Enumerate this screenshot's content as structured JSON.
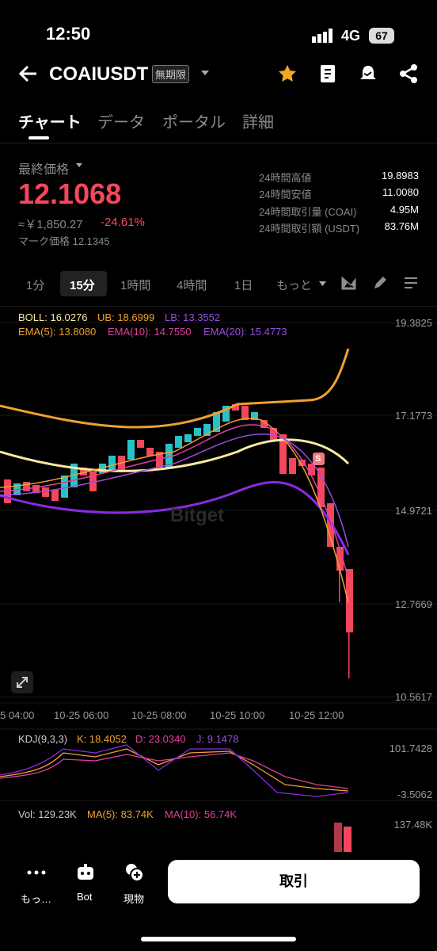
{
  "status": {
    "time": "12:50",
    "network": "4G",
    "battery": "67"
  },
  "header": {
    "symbol": "COAIUSDT",
    "badge": "無期限"
  },
  "tabs": [
    "チャート",
    "データ",
    "ポータル",
    "詳細"
  ],
  "price": {
    "label": "最終価格",
    "value": "12.1068",
    "converted": "≈￥1,850.27",
    "change": "-24.61%",
    "mark": "マーク価格 12.1345"
  },
  "stats": [
    [
      "24時間高値",
      "19.8983"
    ],
    [
      "24時間安値",
      "11.0080"
    ],
    [
      "24時間取引量 (COAI)",
      "4.95M"
    ],
    [
      "24時間取引額 (USDT)",
      "83.76M"
    ]
  ],
  "intervals": [
    "1分",
    "15分",
    "1時間",
    "4時間",
    "1日",
    "もっと"
  ],
  "indicators": {
    "boll": [
      "BOLL: 16.0276",
      "UB: 18.6999",
      "LB: 13.3552"
    ],
    "ema": [
      "EMA(5): 13.8080",
      "EMA(10): 14.7550",
      "EMA(20): 15.4773"
    ]
  },
  "price_axis": [
    "19.3825",
    "17.1773",
    "14.9721",
    "12.7669",
    "10.5617"
  ],
  "time_axis": [
    "5 04:00",
    "10-25 06:00",
    "10-25 08:00",
    "10-25 10:00",
    "10-25 12:00"
  ],
  "watermark": "Bitget",
  "signal": "S",
  "kdj": {
    "labels": [
      "KDJ(9,3,3)",
      "K: 18.4052",
      "D: 23.0340",
      "J: 9.1478"
    ],
    "axis": [
      "101.7428",
      "-3.5062"
    ]
  },
  "vol": {
    "labels": [
      "Vol: 129.23K",
      "MA(5): 83.74K",
      "MA(10): 56.74K"
    ],
    "axis": "137.48K"
  },
  "bottom": {
    "items": [
      "もっ…",
      "Bot",
      "現物"
    ],
    "button": "取引"
  }
}
